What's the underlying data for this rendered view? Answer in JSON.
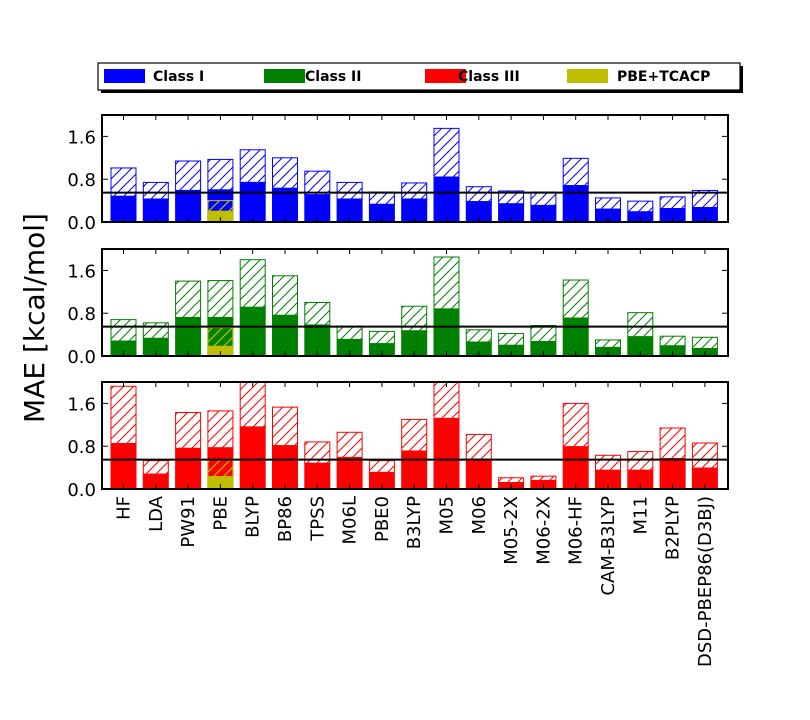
{
  "chart_data": {
    "type": "bar",
    "style": "stacked bar with hatched upper portion, three stacked panels",
    "ylabel": "MAE [kcal/mol]",
    "ylim": [
      0,
      2.0
    ],
    "yticks": [
      "0.0",
      "0.8",
      "1.6"
    ],
    "reference_line": 0.55,
    "legend_position": "top",
    "categories": [
      "HF",
      "LDA",
      "PW91",
      "PBE",
      "BLYP",
      "BP86",
      "TPSS",
      "M06L",
      "PBE0",
      "B3LYP",
      "M05",
      "M06",
      "M05-2X",
      "M06-2X",
      "M06-HF",
      "CAM-B3LYP",
      "M11",
      "B2PLYP",
      "DSD-PBEP86(D3BJ)"
    ],
    "legend": [
      {
        "label": "Class I",
        "color": "#0000ff"
      },
      {
        "label": "Class II",
        "color": "#008000"
      },
      {
        "label": "Class III",
        "color": "#ff0000"
      },
      {
        "label": "PBE+TCACP",
        "color": "#bfbf00"
      }
    ],
    "panels": [
      {
        "series": "Class I",
        "color": "#0000ff",
        "solid": [
          0.48,
          0.43,
          0.59,
          0.6,
          0.74,
          0.63,
          0.51,
          0.43,
          0.33,
          0.43,
          0.84,
          0.38,
          0.34,
          0.31,
          0.68,
          0.24,
          0.19,
          0.25,
          0.27
        ],
        "total": [
          1.01,
          0.74,
          1.14,
          1.17,
          1.35,
          1.2,
          0.95,
          0.74,
          0.56,
          0.73,
          1.75,
          0.66,
          0.58,
          0.56,
          1.19,
          0.45,
          0.39,
          0.47,
          0.59
        ],
        "tcacp": {
          "category": "PBE",
          "solid": 0.2,
          "total": 0.4
        }
      },
      {
        "series": "Class II",
        "color": "#008000",
        "solid": [
          0.28,
          0.33,
          0.72,
          0.72,
          0.91,
          0.76,
          0.58,
          0.31,
          0.23,
          0.47,
          0.88,
          0.26,
          0.2,
          0.27,
          0.71,
          0.16,
          0.36,
          0.19,
          0.14
        ],
        "total": [
          0.68,
          0.62,
          1.4,
          1.41,
          1.8,
          1.5,
          1.0,
          0.56,
          0.46,
          0.93,
          1.85,
          0.49,
          0.42,
          0.57,
          1.42,
          0.3,
          0.81,
          0.37,
          0.35
        ],
        "tcacp": {
          "category": "PBE",
          "solid": 0.18,
          "total": 0.53
        }
      },
      {
        "series": "Class III",
        "color": "#ff0000",
        "solid": [
          0.85,
          0.28,
          0.76,
          0.77,
          1.16,
          0.81,
          0.48,
          0.59,
          0.31,
          0.71,
          1.32,
          0.56,
          0.12,
          0.16,
          0.79,
          0.35,
          0.35,
          0.57,
          0.39
        ],
        "total": [
          1.92,
          0.53,
          1.43,
          1.46,
          2.0,
          1.53,
          0.88,
          1.06,
          0.53,
          1.3,
          2.0,
          1.02,
          0.21,
          0.24,
          1.6,
          0.63,
          0.7,
          1.14,
          0.86
        ],
        "tcacp": {
          "category": "PBE",
          "solid": 0.23,
          "total": 0.55
        }
      }
    ]
  }
}
